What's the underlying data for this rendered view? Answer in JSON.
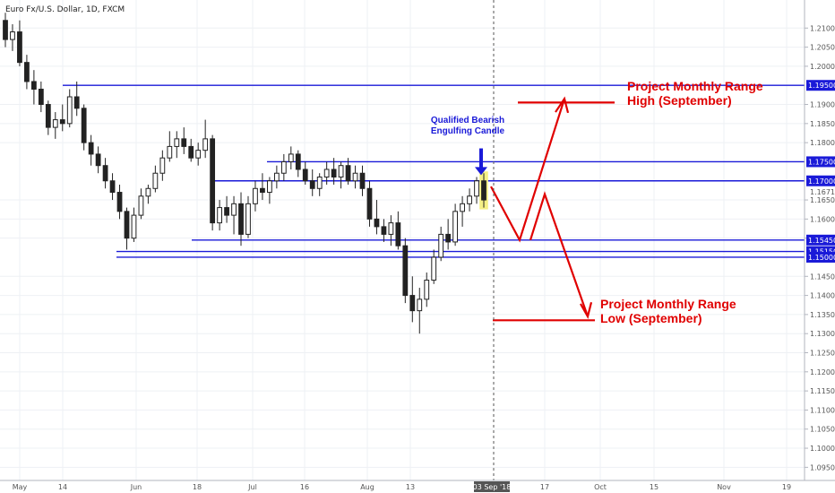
{
  "chart_data": {
    "type": "candlestick",
    "title": "Euro Fx/U.S. Dollar, 1D, FXCM",
    "ylim": [
      1.0925,
      1.215
    ],
    "y_ticks": [
      1.21,
      1.205,
      1.2,
      1.19,
      1.185,
      1.18,
      1.165,
      1.16,
      1.155,
      1.145,
      1.14,
      1.135,
      1.13,
      1.125,
      1.12,
      1.115,
      1.11,
      1.105,
      1.1,
      1.095
    ],
    "x_ticks": [
      "May",
      "14",
      "Jun",
      "18",
      "Jul",
      "16",
      "Aug",
      "13",
      "17",
      "Oct",
      "15",
      "Nov",
      "19"
    ],
    "cursor_date": "03 Sep '18",
    "current_price": "1.16715",
    "levels": [
      {
        "label": "1.19500",
        "value": 1.195
      },
      {
        "label": "1.17500",
        "value": 1.175
      },
      {
        "label": "1.17000",
        "value": 1.17
      },
      {
        "label": "1.15450",
        "value": 1.1545
      },
      {
        "label": "1.15150",
        "value": 1.1515
      },
      {
        "label": "1.15000",
        "value": 1.15
      }
    ],
    "candles": [
      [
        1.212,
        1.214,
        1.205,
        1.207
      ],
      [
        1.207,
        1.211,
        1.204,
        1.209
      ],
      [
        1.209,
        1.212,
        1.2,
        1.201
      ],
      [
        1.201,
        1.203,
        1.194,
        1.196
      ],
      [
        1.196,
        1.199,
        1.19,
        1.194
      ],
      [
        1.194,
        1.196,
        1.188,
        1.19
      ],
      [
        1.19,
        1.191,
        1.182,
        1.184
      ],
      [
        1.184,
        1.188,
        1.181,
        1.186
      ],
      [
        1.186,
        1.19,
        1.183,
        1.185
      ],
      [
        1.185,
        1.194,
        1.184,
        1.192
      ],
      [
        1.192,
        1.196,
        1.187,
        1.189
      ],
      [
        1.189,
        1.19,
        1.178,
        1.18
      ],
      [
        1.18,
        1.182,
        1.174,
        1.177
      ],
      [
        1.177,
        1.179,
        1.172,
        1.174
      ],
      [
        1.174,
        1.176,
        1.168,
        1.17
      ],
      [
        1.17,
        1.172,
        1.165,
        1.167
      ],
      [
        1.167,
        1.169,
        1.16,
        1.162
      ],
      [
        1.162,
        1.163,
        1.152,
        1.155
      ],
      [
        1.155,
        1.163,
        1.154,
        1.161
      ],
      [
        1.161,
        1.168,
        1.16,
        1.166
      ],
      [
        1.166,
        1.169,
        1.164,
        1.168
      ],
      [
        1.168,
        1.174,
        1.167,
        1.172
      ],
      [
        1.172,
        1.178,
        1.17,
        1.176
      ],
      [
        1.176,
        1.183,
        1.175,
        1.179
      ],
      [
        1.179,
        1.183,
        1.176,
        1.181
      ],
      [
        1.181,
        1.184,
        1.177,
        1.179
      ],
      [
        1.179,
        1.181,
        1.175,
        1.176
      ],
      [
        1.176,
        1.18,
        1.174,
        1.178
      ],
      [
        1.178,
        1.186,
        1.176,
        1.181
      ],
      [
        1.181,
        1.182,
        1.157,
        1.159
      ],
      [
        1.159,
        1.165,
        1.157,
        1.163
      ],
      [
        1.163,
        1.166,
        1.159,
        1.161
      ],
      [
        1.161,
        1.166,
        1.156,
        1.164
      ],
      [
        1.164,
        1.167,
        1.153,
        1.156
      ],
      [
        1.156,
        1.166,
        1.155,
        1.164
      ],
      [
        1.164,
        1.17,
        1.162,
        1.168
      ],
      [
        1.168,
        1.172,
        1.165,
        1.167
      ],
      [
        1.167,
        1.171,
        1.164,
        1.17
      ],
      [
        1.17,
        1.174,
        1.168,
        1.172
      ],
      [
        1.172,
        1.177,
        1.17,
        1.175
      ],
      [
        1.175,
        1.179,
        1.173,
        1.177
      ],
      [
        1.177,
        1.178,
        1.171,
        1.173
      ],
      [
        1.173,
        1.175,
        1.169,
        1.17
      ],
      [
        1.17,
        1.173,
        1.166,
        1.168
      ],
      [
        1.168,
        1.172,
        1.166,
        1.171
      ],
      [
        1.171,
        1.175,
        1.169,
        1.173
      ],
      [
        1.173,
        1.176,
        1.169,
        1.171
      ],
      [
        1.171,
        1.175,
        1.168,
        1.174
      ],
      [
        1.174,
        1.176,
        1.169,
        1.17
      ],
      [
        1.17,
        1.174,
        1.168,
        1.172
      ],
      [
        1.172,
        1.174,
        1.166,
        1.168
      ],
      [
        1.168,
        1.17,
        1.158,
        1.16
      ],
      [
        1.16,
        1.165,
        1.156,
        1.158
      ],
      [
        1.158,
        1.16,
        1.154,
        1.156
      ],
      [
        1.156,
        1.161,
        1.153,
        1.159
      ],
      [
        1.159,
        1.162,
        1.152,
        1.153
      ],
      [
        1.153,
        1.155,
        1.138,
        1.14
      ],
      [
        1.14,
        1.145,
        1.133,
        1.136
      ],
      [
        1.136,
        1.142,
        1.13,
        1.139
      ],
      [
        1.139,
        1.146,
        1.137,
        1.144
      ],
      [
        1.144,
        1.152,
        1.143,
        1.15
      ],
      [
        1.15,
        1.158,
        1.149,
        1.156
      ],
      [
        1.156,
        1.16,
        1.152,
        1.154
      ],
      [
        1.154,
        1.164,
        1.153,
        1.162
      ],
      [
        1.162,
        1.166,
        1.158,
        1.164
      ],
      [
        1.164,
        1.168,
        1.162,
        1.166
      ],
      [
        1.166,
        1.171,
        1.164,
        1.17
      ],
      [
        1.17,
        1.172,
        1.163,
        1.165
      ]
    ],
    "annotations": [
      {
        "text": "Qualified Bearish"
      },
      {
        "text": "Engulfing Candle"
      },
      {
        "text": "Project Monthly Range"
      },
      {
        "text": "High (September)"
      },
      {
        "text": "Project Monthly Range"
      },
      {
        "text": "Low (September)"
      }
    ],
    "colors": {
      "level_line": "#1a1ad8",
      "projection": "#e00000",
      "candle_up": "#ffffff",
      "candle_down": "#222222",
      "highlight": "#f5f085"
    }
  }
}
